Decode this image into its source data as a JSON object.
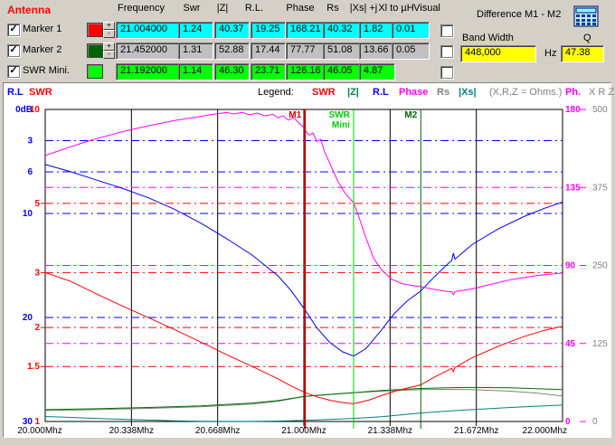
{
  "panel": {
    "title": "Antenna",
    "headers": [
      "Frequency",
      "Swr",
      "|Z|",
      "R.L.",
      "Phase",
      "Rs",
      "|Xs| +j",
      "Xl to µH",
      "Visual"
    ],
    "rows": [
      {
        "id": "marker-1",
        "label": "Marker 1",
        "checked": true,
        "swatch": "#FF0000",
        "spinner": true,
        "field_bg": "#00FFFF",
        "values": [
          "21.004000",
          "1.24",
          "40.37",
          "19.25",
          "168.21",
          "40.32",
          "1.82",
          "0.01"
        ],
        "visual_checked": false
      },
      {
        "id": "marker-2",
        "label": "Marker 2",
        "checked": true,
        "swatch": "#006400",
        "spinner": true,
        "field_bg": "#C0C0C0",
        "values": [
          "21.452000",
          "1.31",
          "52.88",
          "17.44",
          "77.77",
          "51.08",
          "13.66",
          "0.05"
        ],
        "visual_checked": false
      },
      {
        "id": "swr-mini",
        "label": "SWR Mini.",
        "checked": true,
        "swatch": "#00FF00",
        "spinner": false,
        "field_bg": "#00FF00",
        "values": [
          "21.192000",
          "1.14",
          "46.30",
          "23.71",
          "126.16",
          "46.05",
          "4.87",
          null
        ],
        "visual_checked": false
      }
    ],
    "spinner_up": "+",
    "spinner_down": "-"
  },
  "difference": {
    "title": "Difference M1 - M2",
    "bandwidth_label": "Band Width",
    "bandwidth_value": "448,000",
    "bandwidth_unit": "Hz",
    "q_label": "Q",
    "q_value": "47.38"
  },
  "legend": {
    "left": [
      {
        "text": "R.L",
        "color": "#0000FF",
        "x": 8
      },
      {
        "text": "SWR",
        "color": "#FF0000",
        "x": 32
      }
    ],
    "center_label": "Legend:",
    "items": [
      {
        "text": "SWR",
        "color": "#FF0000",
        "x": 345
      },
      {
        "text": "|Z|",
        "color": "#008040",
        "x": 384
      },
      {
        "text": "R.L",
        "color": "#0000FF",
        "x": 412
      },
      {
        "text": "Phase",
        "color": "#FF00FF",
        "x": 441
      },
      {
        "text": "Rs",
        "color": "#808080",
        "x": 483
      },
      {
        "text": "|Xs|",
        "color": "#008080",
        "x": 507
      },
      {
        "text": "(X,R,Z = Ohms.)",
        "color": "#808080",
        "x": 541
      }
    ],
    "right": [
      {
        "text": "Ph.",
        "color": "#FF00FF",
        "x": 625
      },
      {
        "text": "X R Z",
        "color": "#808080",
        "x": 651
      }
    ]
  },
  "chart_data": {
    "type": "line",
    "x_range": [
      20.0,
      22.0
    ],
    "x_tick_labels": [
      "20.000Mhz",
      "20.338Mhz",
      "20.668Mhz",
      "21.000Mhz",
      "21.338Mhz",
      "21.672Mhz",
      "22.000Mhz"
    ],
    "grid": true,
    "axes": {
      "rl": {
        "name": "R.L",
        "color": "#0000FF",
        "scale": "linear",
        "range": [
          0,
          30
        ],
        "direction": "down",
        "tick_values": [
          0,
          3,
          6,
          10,
          20,
          30
        ],
        "tick_labels": [
          "0dB",
          "3",
          "6",
          "10",
          "20",
          "30"
        ],
        "gridlines": [
          3,
          6,
          10,
          20
        ]
      },
      "swr": {
        "name": "SWR",
        "color": "#FF0000",
        "scale": "log",
        "range": [
          1,
          10
        ],
        "direction": "down",
        "tick_values": [
          10,
          5,
          3,
          2,
          1.5,
          1
        ],
        "tick_labels": [
          "10",
          "5",
          "3",
          "2",
          "1.5",
          "1"
        ],
        "gridlines": [
          5,
          3,
          2,
          1.5
        ]
      },
      "phase": {
        "name": "Ph.",
        "color": "#FF00FF",
        "scale": "linear",
        "range": [
          0,
          180
        ],
        "direction": "up",
        "tick_values": [
          180,
          135,
          90,
          45,
          0
        ],
        "tick_labels": [
          "180",
          "135",
          "90",
          "45",
          "0"
        ],
        "gridlines": [
          135,
          90,
          45
        ]
      },
      "ohms": {
        "name": "X R Z",
        "color": "#808080",
        "scale": "linear",
        "range": [
          0,
          500
        ],
        "direction": "up",
        "tick_values": [
          500,
          375,
          250,
          125,
          0
        ],
        "tick_labels": [
          "500",
          "375",
          "250",
          "125",
          "0"
        ],
        "gridlines": []
      }
    },
    "markers": [
      {
        "name": "M1",
        "freq": 21.004,
        "color": "#CC0000",
        "width": 2,
        "label_lines": [
          "M1"
        ]
      },
      {
        "name": "SWR Mini",
        "freq": 21.192,
        "color": "#00CC00",
        "width": 1,
        "label_lines": [
          "SWR",
          "Mini"
        ]
      },
      {
        "name": "M2",
        "freq": 21.452,
        "color": "#006400",
        "width": 1,
        "label_lines": [
          "M2"
        ]
      }
    ],
    "series": [
      {
        "name": "|Xs|",
        "axis": "ohms",
        "color": "#008080",
        "points": [
          [
            20.0,
            8
          ],
          [
            20.1,
            6.5
          ],
          [
            20.2,
            5
          ],
          [
            20.3,
            3.5
          ],
          [
            20.4,
            2.3
          ],
          [
            20.5,
            1.2
          ],
          [
            20.6,
            0.4
          ],
          [
            20.7,
            0.1
          ],
          [
            20.8,
            0.2
          ],
          [
            20.9,
            0.7
          ],
          [
            21.004,
            1.82
          ],
          [
            21.1,
            3.2
          ],
          [
            21.192,
            4.87
          ],
          [
            21.3,
            7.5
          ],
          [
            21.452,
            13.66
          ],
          [
            21.55,
            16.5
          ],
          [
            21.65,
            19
          ],
          [
            21.8,
            22.5
          ],
          [
            21.9,
            24.5
          ],
          [
            22.0,
            26.2
          ]
        ]
      },
      {
        "name": "Rs",
        "axis": "ohms",
        "color": "#808080",
        "points": [
          [
            20.0,
            17.5
          ],
          [
            20.2,
            19
          ],
          [
            20.4,
            21
          ],
          [
            20.6,
            23.5
          ],
          [
            20.8,
            28
          ],
          [
            20.9,
            32.5
          ],
          [
            21.004,
            40.32
          ],
          [
            21.1,
            43
          ],
          [
            21.192,
            46.05
          ],
          [
            21.3,
            48.5
          ],
          [
            21.452,
            51.08
          ],
          [
            21.55,
            51.5
          ],
          [
            21.65,
            51
          ],
          [
            21.8,
            48.5
          ],
          [
            21.9,
            45.5
          ],
          [
            22.0,
            41
          ]
        ]
      },
      {
        "name": "|Z|",
        "axis": "ohms",
        "color": "#007000",
        "points": [
          [
            20.0,
            19
          ],
          [
            20.2,
            20.5
          ],
          [
            20.4,
            22.5
          ],
          [
            20.6,
            25
          ],
          [
            20.8,
            29.5
          ],
          [
            20.9,
            33.5
          ],
          [
            21.004,
            40.37
          ],
          [
            21.1,
            43.5
          ],
          [
            21.192,
            46.3
          ],
          [
            21.3,
            49.5
          ],
          [
            21.452,
            52.88
          ],
          [
            21.55,
            54
          ],
          [
            21.65,
            54.5
          ],
          [
            21.8,
            54
          ],
          [
            21.9,
            52.5
          ],
          [
            22.0,
            51
          ]
        ]
      },
      {
        "name": "SWR",
        "axis": "swr",
        "color": "#FF0000",
        "points": [
          [
            20.0,
            3.0
          ],
          [
            20.1,
            2.81
          ],
          [
            20.2,
            2.56
          ],
          [
            20.3,
            2.34
          ],
          [
            20.4,
            2.15
          ],
          [
            20.5,
            1.97
          ],
          [
            20.6,
            1.8
          ],
          [
            20.7,
            1.64
          ],
          [
            20.8,
            1.5
          ],
          [
            20.9,
            1.37
          ],
          [
            20.95,
            1.3
          ],
          [
            21.004,
            1.24
          ],
          [
            21.05,
            1.2
          ],
          [
            21.1,
            1.17
          ],
          [
            21.15,
            1.15
          ],
          [
            21.192,
            1.14
          ],
          [
            21.25,
            1.17
          ],
          [
            21.3,
            1.21
          ],
          [
            21.35,
            1.25
          ],
          [
            21.4,
            1.28
          ],
          [
            21.452,
            1.31
          ],
          [
            21.5,
            1.38
          ],
          [
            21.55,
            1.45
          ],
          [
            21.572,
            1.48
          ],
          [
            21.578,
            1.445
          ],
          [
            21.584,
            1.49
          ],
          [
            21.65,
            1.6
          ],
          [
            21.75,
            1.74
          ],
          [
            21.85,
            1.87
          ],
          [
            21.93,
            1.96
          ],
          [
            22.0,
            2.02
          ]
        ]
      },
      {
        "name": "R.L",
        "axis": "rl",
        "color": "#0000EE",
        "points": [
          [
            20.0,
            5.3
          ],
          [
            20.1,
            6.0
          ],
          [
            20.2,
            6.8
          ],
          [
            20.3,
            7.6
          ],
          [
            20.4,
            8.5
          ],
          [
            20.5,
            9.6
          ],
          [
            20.6,
            10.9
          ],
          [
            20.7,
            12.4
          ],
          [
            20.8,
            14.0
          ],
          [
            20.9,
            16.0
          ],
          [
            20.95,
            17.4
          ],
          [
            21.004,
            19.25
          ],
          [
            21.05,
            21.0
          ],
          [
            21.1,
            22.4
          ],
          [
            21.15,
            23.3
          ],
          [
            21.192,
            23.71
          ],
          [
            21.24,
            23.0
          ],
          [
            21.3,
            21.2
          ],
          [
            21.35,
            19.6
          ],
          [
            21.4,
            18.4
          ],
          [
            21.452,
            17.44
          ],
          [
            21.5,
            16.2
          ],
          [
            21.55,
            15.0
          ],
          [
            21.572,
            14.5
          ],
          [
            21.578,
            13.8
          ],
          [
            21.584,
            14.4
          ],
          [
            21.65,
            13.0
          ],
          [
            21.75,
            11.5
          ],
          [
            21.85,
            10.3
          ],
          [
            21.93,
            9.5
          ],
          [
            22.0,
            8.9
          ]
        ]
      },
      {
        "name": "Phase",
        "axis": "phase",
        "color": "#FF00FF",
        "points": [
          [
            20.0,
            153.5
          ],
          [
            20.05,
            156.0
          ],
          [
            20.1,
            158.5
          ],
          [
            20.15,
            161.0
          ],
          [
            20.2,
            163.2
          ],
          [
            20.3,
            167.2
          ],
          [
            20.4,
            170.6
          ],
          [
            20.5,
            173.6
          ],
          [
            20.6,
            176.0
          ],
          [
            20.65,
            177.2
          ],
          [
            20.7,
            178.2
          ],
          [
            20.73,
            177.4
          ],
          [
            20.76,
            178.3
          ],
          [
            20.79,
            176.9
          ],
          [
            20.82,
            177.9
          ],
          [
            20.85,
            176.3
          ],
          [
            20.88,
            177.2
          ],
          [
            20.9,
            175.2
          ],
          [
            20.92,
            176.4
          ],
          [
            20.94,
            173.9
          ],
          [
            20.96,
            175.3
          ],
          [
            20.98,
            172.3
          ],
          [
            21.0,
            169.5
          ],
          [
            21.004,
            168.21
          ],
          [
            21.02,
            165.2
          ],
          [
            21.035,
            166.5
          ],
          [
            21.05,
            161.5
          ],
          [
            21.065,
            162.8
          ],
          [
            21.08,
            155.5
          ],
          [
            21.1,
            149.0
          ],
          [
            21.13,
            139.0
          ],
          [
            21.16,
            131.5
          ],
          [
            21.192,
            126.16
          ],
          [
            21.21,
            119.0
          ],
          [
            21.24,
            106.0
          ],
          [
            21.27,
            94.0
          ],
          [
            21.3,
            87.5
          ],
          [
            21.34,
            82.0
          ],
          [
            21.38,
            79.5
          ],
          [
            21.42,
            78.4
          ],
          [
            21.452,
            77.77
          ],
          [
            21.5,
            76.3
          ],
          [
            21.55,
            75.1
          ],
          [
            21.572,
            74.8
          ],
          [
            21.578,
            73.2
          ],
          [
            21.584,
            74.9
          ],
          [
            21.65,
            76.5
          ],
          [
            21.72,
            79.0
          ],
          [
            21.8,
            81.8
          ],
          [
            21.9,
            84.2
          ],
          [
            22.0,
            85.6
          ]
        ]
      }
    ]
  }
}
